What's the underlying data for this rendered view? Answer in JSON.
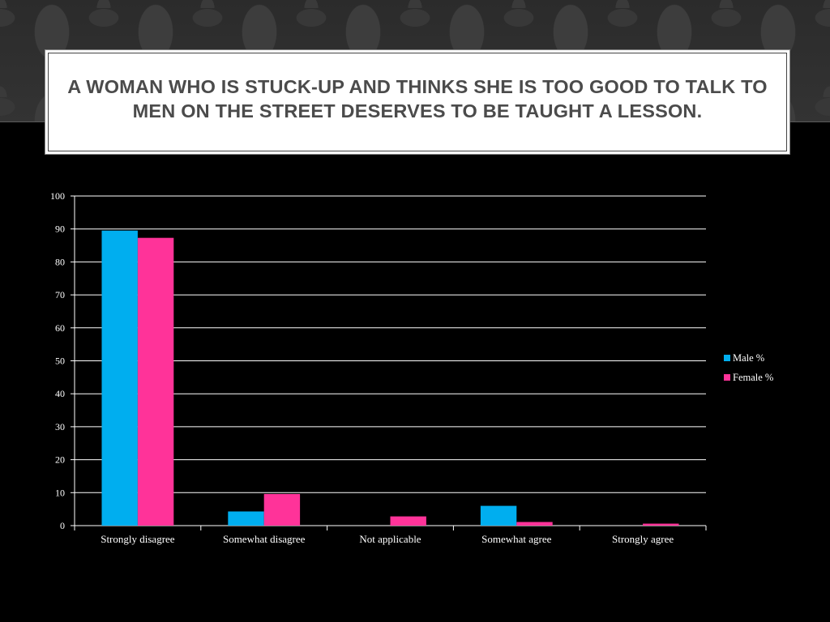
{
  "slide": {
    "title": "A woman who is stuck-up and thinks she is too good to talk to men on the street deserves to be taught a lesson."
  },
  "colors": {
    "background": "#000000",
    "male": "#00aeef",
    "female": "#ff3399",
    "gridline": "#ffffff",
    "text": "#ffffff",
    "title_text": "#4b4b4b"
  },
  "chart_data": {
    "type": "bar",
    "title": "",
    "xlabel": "",
    "ylabel": "",
    "categories": [
      "Strongly disagree",
      "Somewhat disagree",
      "Not applicable",
      "Somewhat agree",
      "Strongly agree"
    ],
    "series": [
      {
        "name": "Male %",
        "values": [
          89.5,
          4.3,
          0,
          6,
          0
        ]
      },
      {
        "name": "Female %",
        "values": [
          87.3,
          9.6,
          2.8,
          1.1,
          0.6
        ]
      }
    ],
    "ylim": [
      0,
      100
    ],
    "yticks": [
      0,
      10,
      20,
      30,
      40,
      50,
      60,
      70,
      80,
      90,
      100
    ],
    "grid": true,
    "legend": "right"
  }
}
